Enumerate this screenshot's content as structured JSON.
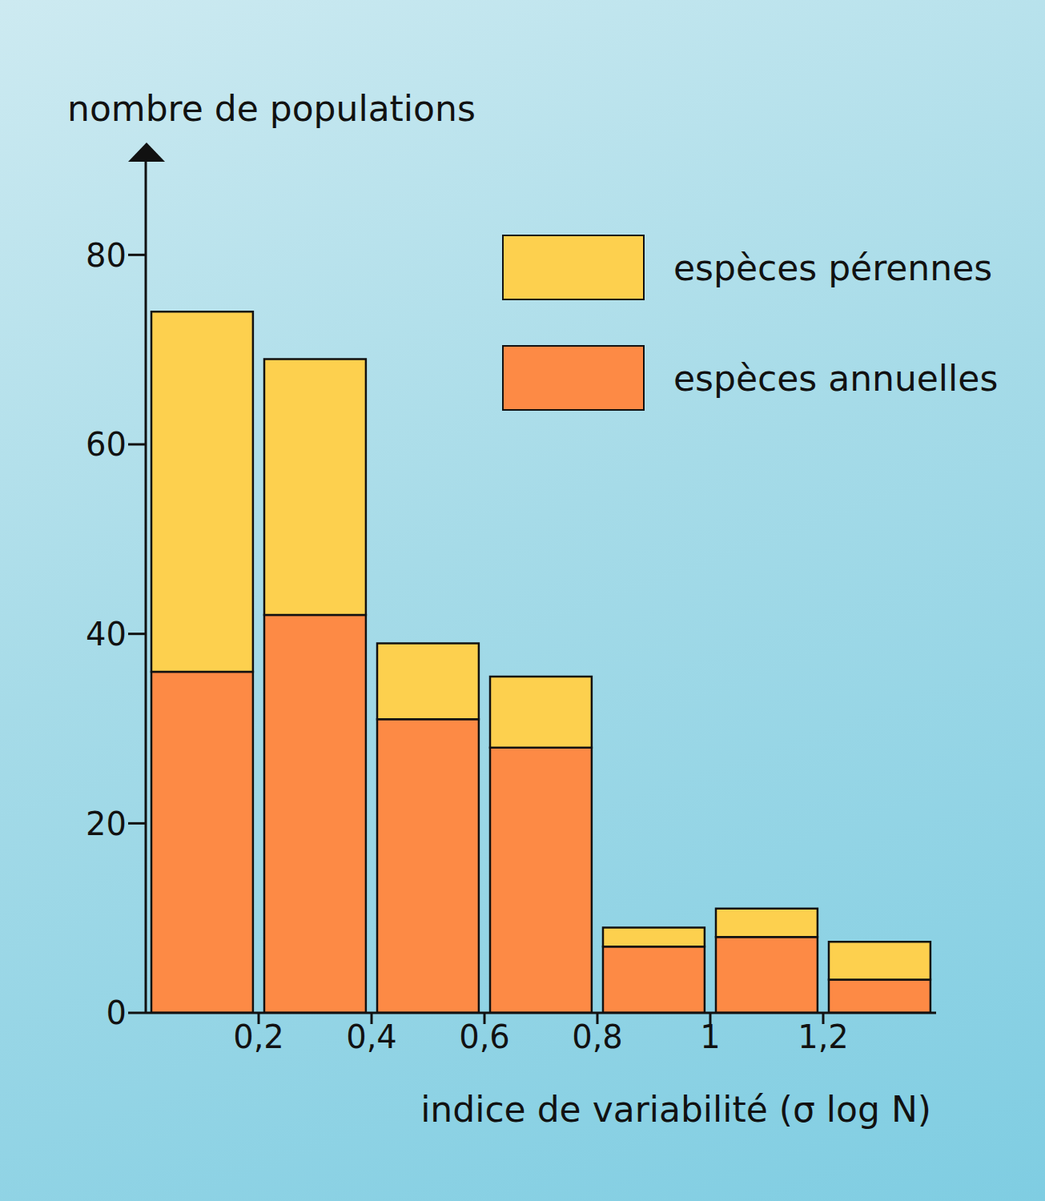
{
  "chart_data": {
    "type": "bar",
    "stacked": true,
    "x_label": "indice de variabilité (σ log N)",
    "y_label": "nombre de populations",
    "bins": [
      0,
      0.2,
      0.4,
      0.6,
      0.8,
      1,
      1.2,
      1.4
    ],
    "series": [
      {
        "name": "espèces pérennes",
        "color": "#fdd04e",
        "values": [
          38,
          27,
          8,
          7.5,
          2,
          3,
          4
        ]
      },
      {
        "name": "espèces annuelles",
        "color": "#fd8a45",
        "values": [
          36,
          42,
          31,
          28,
          7,
          8,
          3.5
        ]
      }
    ],
    "xlim": [
      0,
      1.4
    ],
    "ylim": [
      0,
      90
    ],
    "xticks": [
      {
        "value": 0.2,
        "label": "0,2"
      },
      {
        "value": 0.4,
        "label": "0,4"
      },
      {
        "value": 0.6,
        "label": "0,6"
      },
      {
        "value": 0.8,
        "label": "0,8"
      },
      1,
      {
        "value": 1.2,
        "label": "1,2"
      }
    ],
    "yticks": [
      0,
      20,
      40,
      60,
      80
    ],
    "legend": "upper right",
    "grid": false
  }
}
